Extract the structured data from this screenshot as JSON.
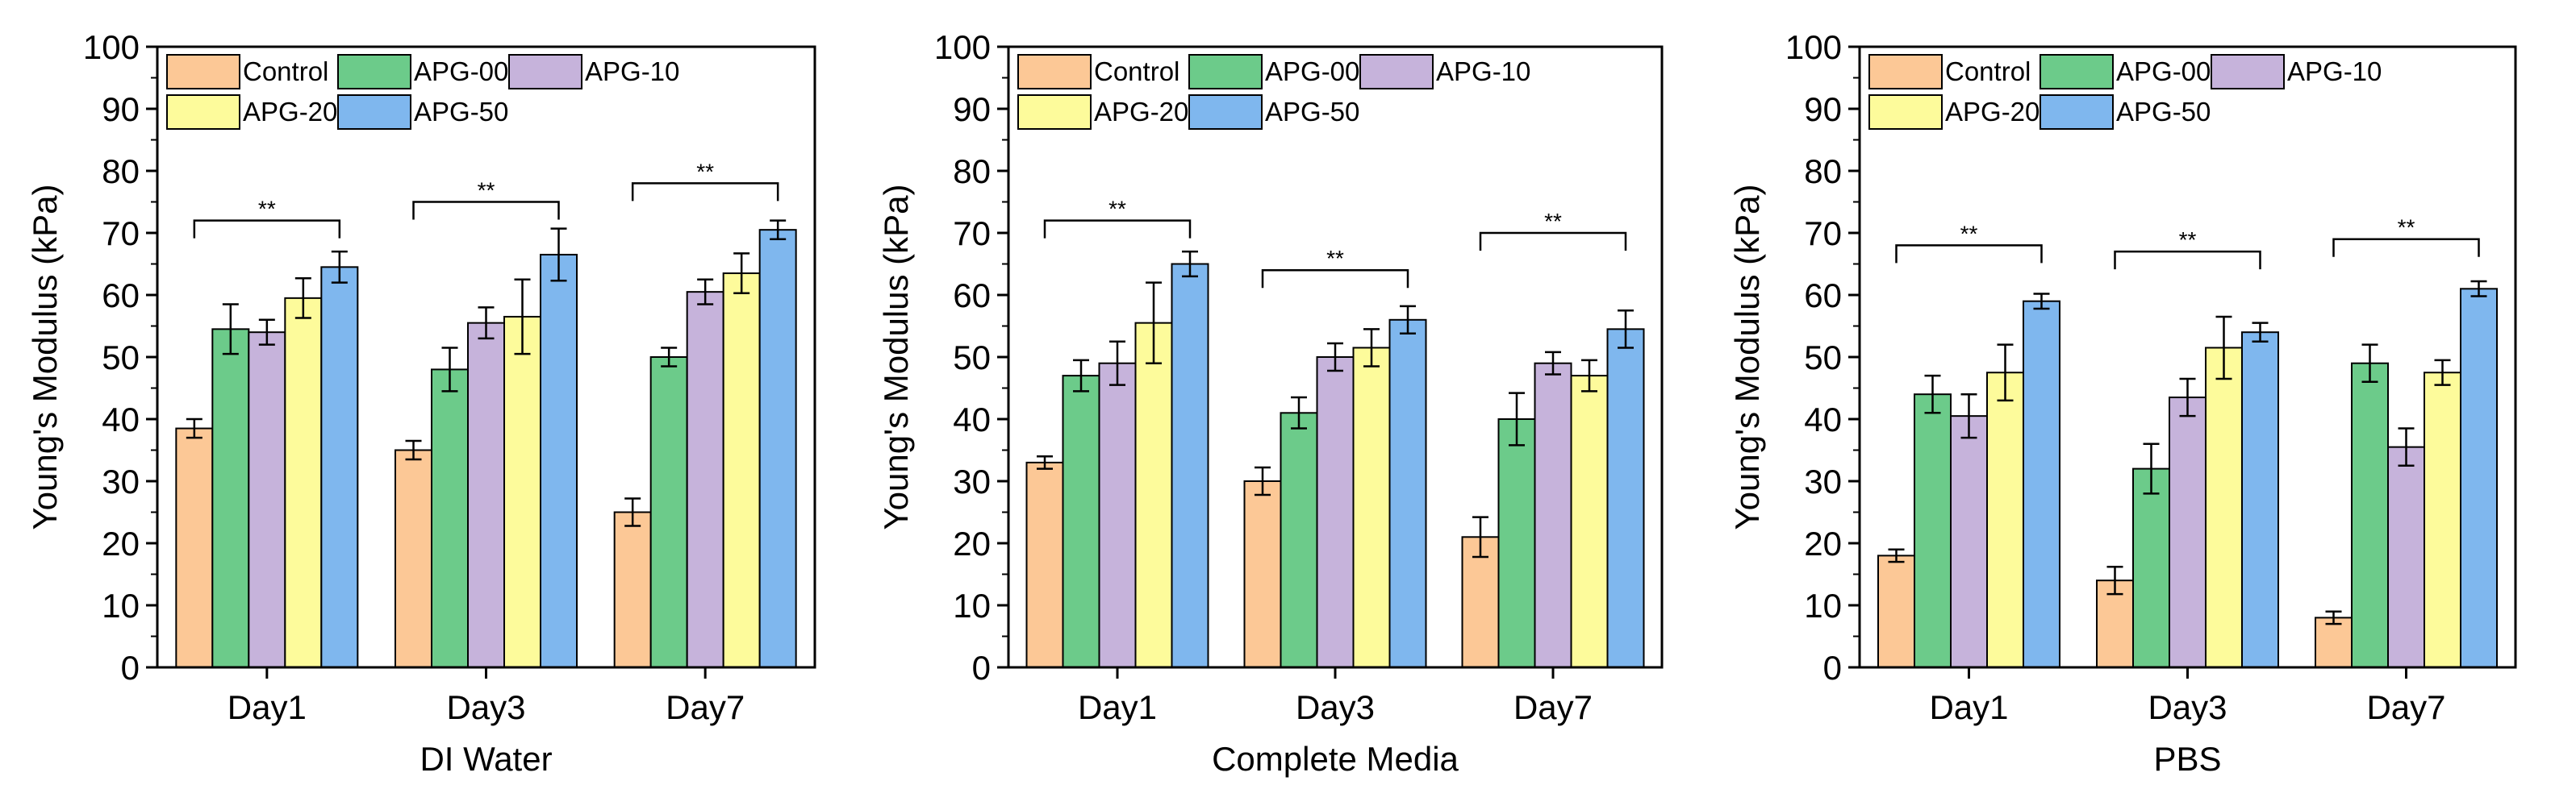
{
  "colors": {
    "Control": "#FCC896",
    "APG-00": "#6CCB8A",
    "APG-10": "#C6B3DB",
    "APG-20": "#FDFB9B",
    "APG-50": "#7FB7EE"
  },
  "significance_label": "**",
  "chart_data": [
    {
      "type": "bar",
      "xlabel": "DI Water",
      "ylabel": "Young's Modulus (kPa)",
      "ylim": [
        0,
        100
      ],
      "yticks": [
        0,
        10,
        20,
        30,
        40,
        50,
        60,
        70,
        80,
        90,
        100
      ],
      "categories": [
        "Day1",
        "Day3",
        "Day7"
      ],
      "legend": {
        "position": "top-left",
        "columns": 3
      },
      "series": [
        {
          "name": "Control",
          "values": [
            38.5,
            35,
            25
          ],
          "errors": [
            1.5,
            1.5,
            2.2
          ]
        },
        {
          "name": "APG-00",
          "values": [
            54.5,
            48,
            50
          ],
          "errors": [
            4,
            3.5,
            1.5
          ]
        },
        {
          "name": "APG-10",
          "values": [
            54,
            55.5,
            60.5
          ],
          "errors": [
            2,
            2.5,
            2
          ]
        },
        {
          "name": "APG-20",
          "values": [
            59.5,
            56.5,
            63.5
          ],
          "errors": [
            3.2,
            6,
            3.2
          ]
        },
        {
          "name": "APG-50",
          "values": [
            64.5,
            66.5,
            70.5
          ],
          "errors": [
            2.5,
            4.2,
            1.5
          ]
        }
      ],
      "brackets": [
        {
          "category": "Day1",
          "y": 72,
          "label": "**"
        },
        {
          "category": "Day3",
          "y": 75,
          "label": "**"
        },
        {
          "category": "Day7",
          "y": 78,
          "label": "**"
        }
      ]
    },
    {
      "type": "bar",
      "xlabel": "Complete Media",
      "ylabel": "Young's Modulus (kPa)",
      "ylim": [
        0,
        100
      ],
      "yticks": [
        0,
        10,
        20,
        30,
        40,
        50,
        60,
        70,
        80,
        90,
        100
      ],
      "categories": [
        "Day1",
        "Day3",
        "Day7"
      ],
      "legend": {
        "position": "top-left",
        "columns": 3
      },
      "series": [
        {
          "name": "Control",
          "values": [
            33,
            30,
            21
          ],
          "errors": [
            1,
            2.2,
            3.2
          ]
        },
        {
          "name": "APG-00",
          "values": [
            47,
            41,
            40
          ],
          "errors": [
            2.5,
            2.5,
            4.2
          ]
        },
        {
          "name": "APG-10",
          "values": [
            49,
            50,
            49
          ],
          "errors": [
            3.5,
            2.2,
            1.8
          ]
        },
        {
          "name": "APG-20",
          "values": [
            55.5,
            51.5,
            47
          ],
          "errors": [
            6.5,
            3,
            2.5
          ]
        },
        {
          "name": "APG-50",
          "values": [
            65,
            56,
            54.5
          ],
          "errors": [
            2,
            2.2,
            3
          ]
        }
      ],
      "brackets": [
        {
          "category": "Day1",
          "y": 72,
          "label": "**"
        },
        {
          "category": "Day3",
          "y": 64,
          "label": "**"
        },
        {
          "category": "Day7",
          "y": 70,
          "label": "**"
        }
      ]
    },
    {
      "type": "bar",
      "xlabel": "PBS",
      "ylabel": "Young's Modulus (kPa)",
      "ylim": [
        0,
        100
      ],
      "yticks": [
        0,
        10,
        20,
        30,
        40,
        50,
        60,
        70,
        80,
        90,
        100
      ],
      "categories": [
        "Day1",
        "Day3",
        "Day7"
      ],
      "legend": {
        "position": "top-left",
        "columns": 3
      },
      "series": [
        {
          "name": "Control",
          "values": [
            18,
            14,
            8
          ],
          "errors": [
            1,
            2.2,
            1
          ]
        },
        {
          "name": "APG-00",
          "values": [
            44,
            32,
            49
          ],
          "errors": [
            3,
            4,
            3
          ]
        },
        {
          "name": "APG-10",
          "values": [
            40.5,
            43.5,
            35.5
          ],
          "errors": [
            3.5,
            3,
            3
          ]
        },
        {
          "name": "APG-20",
          "values": [
            47.5,
            51.5,
            47.5
          ],
          "errors": [
            4.5,
            5,
            2
          ]
        },
        {
          "name": "APG-50",
          "values": [
            59,
            54,
            61
          ],
          "errors": [
            1.2,
            1.5,
            1.2
          ]
        }
      ],
      "brackets": [
        {
          "category": "Day1",
          "y": 68,
          "label": "**"
        },
        {
          "category": "Day3",
          "y": 67,
          "label": "**"
        },
        {
          "category": "Day7",
          "y": 69,
          "label": "**"
        }
      ]
    }
  ]
}
